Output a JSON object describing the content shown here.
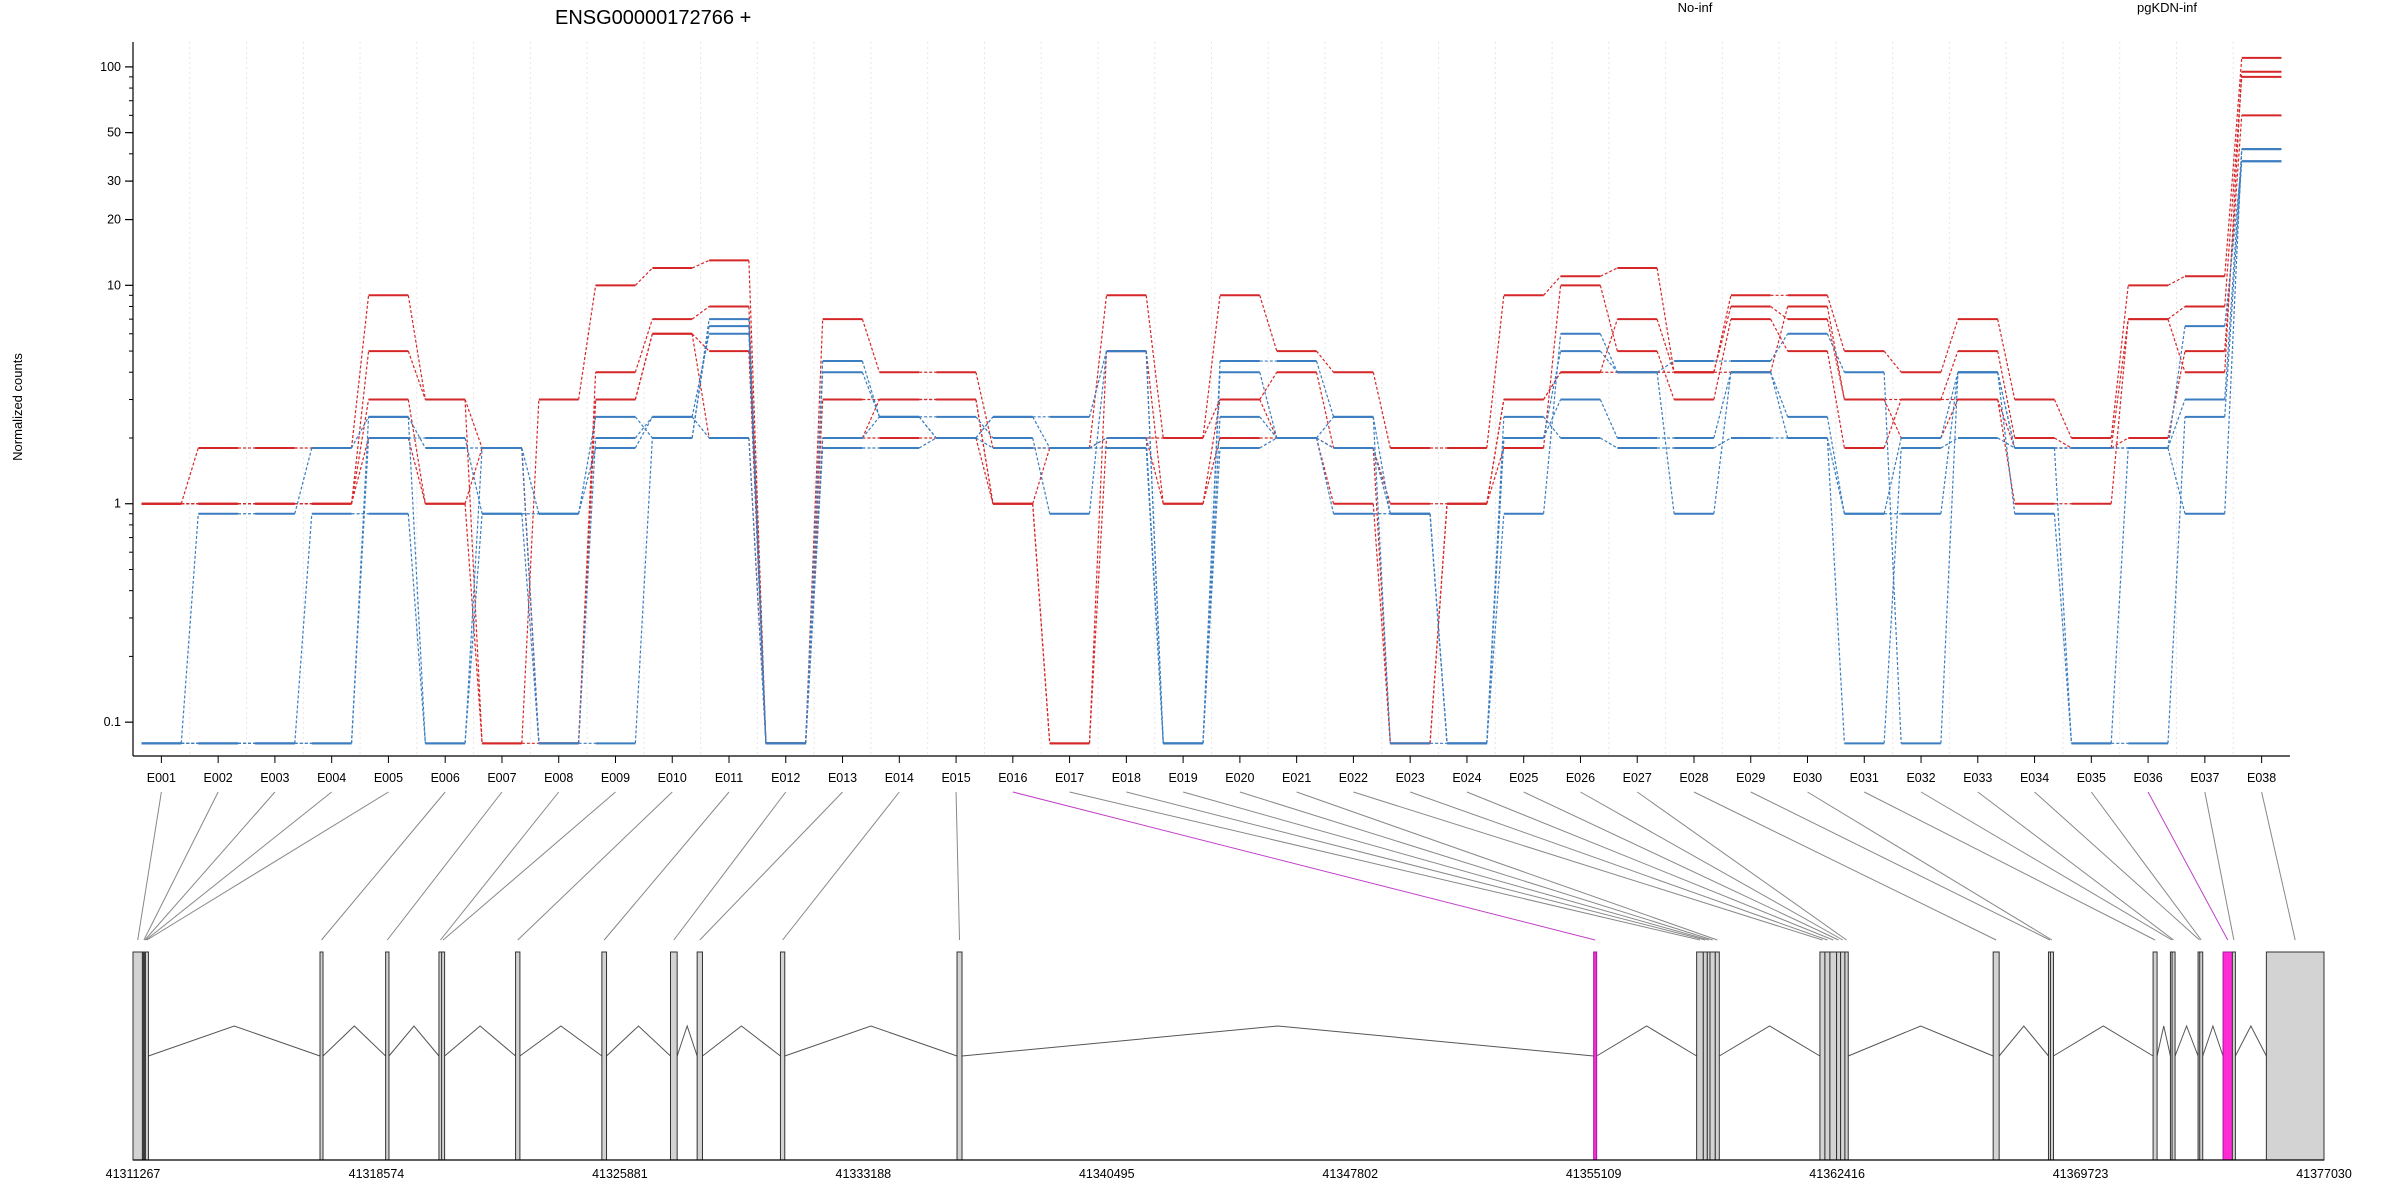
{
  "chart_data": [
    {
      "type": "line",
      "title": "ENSG00000172766 +",
      "xlabel": "",
      "ylabel": "Normalized counts",
      "y_scale": "log",
      "ylim": [
        0.07,
        130
      ],
      "yticks": [
        0.1,
        1,
        10,
        20,
        30,
        50,
        100
      ],
      "ytick_labels": [
        "0.1",
        "1",
        "10",
        "20",
        "30",
        "50",
        "100"
      ],
      "grid": "vertical dotted lines at exon boundaries",
      "legend_position": "top",
      "categories": [
        "E001",
        "E002",
        "E003",
        "E004",
        "E005",
        "E006",
        "E007",
        "E008",
        "E009",
        "E010",
        "E011",
        "E012",
        "E013",
        "E014",
        "E015",
        "E016",
        "E017",
        "E018",
        "E019",
        "E020",
        "E021",
        "E022",
        "E023",
        "E024",
        "E025",
        "E026",
        "E027",
        "E028",
        "E029",
        "E030",
        "E031",
        "E032",
        "E033",
        "E034",
        "E035",
        "E036",
        "E037",
        "E038"
      ],
      "groups": [
        {
          "name": "No-inf",
          "color": "#d62728"
        },
        {
          "name": "pgKDN-inf",
          "color": "#3a7dc0"
        }
      ],
      "series": [
        {
          "group": "No-inf",
          "values": [
            1,
            1.8,
            1.8,
            1.8,
            9,
            3,
            0.08,
            3,
            10,
            12,
            13,
            0.08,
            7,
            4,
            4,
            1.8,
            1.8,
            9,
            2,
            9,
            5,
            4,
            1.8,
            1.8,
            9,
            11,
            12,
            4,
            9,
            9,
            5,
            4,
            7,
            3,
            2,
            10,
            11,
            110
          ]
        },
        {
          "group": "No-inf",
          "values": [
            1,
            1,
            1,
            1,
            5,
            3,
            1.8,
            0.08,
            4,
            7,
            8,
            0.08,
            3,
            3,
            3,
            1,
            0.08,
            5,
            1,
            3,
            4,
            1.8,
            0.08,
            1,
            1.8,
            10,
            5,
            3,
            7,
            5,
            1.8,
            3,
            5,
            2,
            1.8,
            7,
            4,
            95
          ]
        },
        {
          "group": "No-inf",
          "values": [
            1,
            1,
            1,
            1,
            3,
            1,
            0.08,
            0.08,
            3,
            6,
            5,
            0.08,
            2,
            2,
            2,
            1,
            0.08,
            2,
            1,
            2,
            2,
            1,
            0.08,
            1,
            3,
            4,
            7,
            4,
            8,
            7,
            3,
            2,
            3,
            1,
            1,
            7,
            8,
            90
          ]
        },
        {
          "group": "No-inf",
          "values": [
            1,
            1,
            1,
            1,
            2,
            1,
            1.8,
            0.08,
            3,
            6,
            2,
            0.08,
            2,
            3,
            3,
            1,
            1.8,
            2,
            2,
            3,
            2,
            1.8,
            1,
            1,
            3,
            4,
            4,
            4,
            4,
            8,
            3,
            3,
            3,
            1.8,
            1.8,
            2,
            5,
            60
          ]
        },
        {
          "group": "pgKDN-inf",
          "values": [
            0.08,
            0.9,
            0.9,
            1.8,
            2.5,
            1.8,
            1.8,
            0.9,
            2.5,
            2,
            7,
            0.08,
            2,
            2.5,
            2.5,
            2,
            0.9,
            5,
            0.08,
            2.5,
            2,
            1.8,
            0.9,
            0.08,
            2,
            3,
            2,
            2,
            4,
            2,
            0.9,
            2,
            4,
            1.8,
            1.8,
            1.8,
            3,
            42
          ]
        },
        {
          "group": "pgKDN-inf",
          "values": [
            0.08,
            0.08,
            0.08,
            0.08,
            2,
            2,
            0.9,
            0.9,
            1.8,
            2.5,
            6,
            0.08,
            4,
            2.5,
            2,
            1.8,
            1.8,
            2,
            0.08,
            4,
            2,
            0.9,
            0.9,
            0.08,
            0.9,
            6,
            4,
            0.9,
            4,
            2.5,
            0.9,
            0.9,
            4,
            0.9,
            0.08,
            0.08,
            2.5,
            37
          ]
        },
        {
          "group": "pgKDN-inf",
          "values": [
            0.08,
            0.08,
            0.08,
            0.9,
            0.9,
            0.08,
            1.8,
            0.08,
            2,
            2.5,
            2,
            0.08,
            1.8,
            1.8,
            2,
            2.5,
            1.8,
            1.8,
            0.08,
            1.8,
            2,
            2.5,
            0.08,
            0.08,
            2.5,
            2,
            1.8,
            1.8,
            2,
            2,
            0.08,
            1.8,
            2,
            1.8,
            0.08,
            1.8,
            0.9,
            42
          ]
        },
        {
          "group": "pgKDN-inf",
          "values": [
            0.08,
            0.08,
            0.08,
            0.08,
            2.5,
            0.08,
            0.9,
            0.08,
            0.08,
            2,
            6.5,
            0.08,
            4.5,
            2.5,
            2,
            2.5,
            2.5,
            5,
            0.08,
            4.5,
            4.5,
            2.5,
            0.9,
            0.08,
            2,
            5,
            4,
            4.5,
            4.5,
            6,
            4,
            0.08,
            4,
            1.8,
            1.8,
            1.8,
            6.5,
            37
          ]
        }
      ]
    },
    {
      "type": "gene-model",
      "x_axis_ticks": [
        "41311267",
        "41318574",
        "41325881",
        "41333188",
        "41340495",
        "41347802",
        "41355109",
        "41362416",
        "41369723",
        "41377030"
      ],
      "xlim": [
        41311267,
        41377030
      ],
      "highlighted_exons": [
        "E016",
        "E036"
      ],
      "highlight_color": "#ff2ad4",
      "exon_fill": "#d3d3d3",
      "exons": [
        {
          "id": "E001",
          "start": 41311267,
          "end": 41311550
        },
        {
          "id": "E002",
          "start": 41311550,
          "end": 41311580
        },
        {
          "id": "E003",
          "start": 41311580,
          "end": 41311610
        },
        {
          "id": "E004",
          "start": 41311610,
          "end": 41311640
        },
        {
          "id": "E005",
          "start": 41311640,
          "end": 41311670
        },
        {
          "id": "E006",
          "start": 41316880,
          "end": 41316960
        },
        {
          "id": "E007",
          "start": 41318850,
          "end": 41318950
        },
        {
          "id": "E008",
          "start": 41320450,
          "end": 41320530
        },
        {
          "id": "E009",
          "start": 41320530,
          "end": 41320600
        },
        {
          "id": "E010",
          "start": 41322750,
          "end": 41322880
        },
        {
          "id": "E011",
          "start": 41325340,
          "end": 41325480
        },
        {
          "id": "E012",
          "start": 41327400,
          "end": 41327600
        },
        {
          "id": "E013",
          "start": 41328200,
          "end": 41328360
        },
        {
          "id": "E014",
          "start": 41330700,
          "end": 41330830
        },
        {
          "id": "E015",
          "start": 41336000,
          "end": 41336150
        },
        {
          "id": "E016",
          "start": 41355109,
          "end": 41355180
        },
        {
          "id": "E017",
          "start": 41358200,
          "end": 41358400
        },
        {
          "id": "E018",
          "start": 41358400,
          "end": 41358520
        },
        {
          "id": "E019",
          "start": 41358520,
          "end": 41358600
        },
        {
          "id": "E020",
          "start": 41358600,
          "end": 41358760
        },
        {
          "id": "E021",
          "start": 41358760,
          "end": 41358880
        },
        {
          "id": "E022",
          "start": 41361900,
          "end": 41362050
        },
        {
          "id": "E023",
          "start": 41362050,
          "end": 41362200
        },
        {
          "id": "E024",
          "start": 41362200,
          "end": 41362400
        },
        {
          "id": "E025",
          "start": 41362400,
          "end": 41362520
        },
        {
          "id": "E026",
          "start": 41362520,
          "end": 41362650
        },
        {
          "id": "E027",
          "start": 41362650,
          "end": 41362750
        },
        {
          "id": "E028",
          "start": 41367100,
          "end": 41367280
        },
        {
          "id": "E029",
          "start": 41368760,
          "end": 41368820
        },
        {
          "id": "E030",
          "start": 41368820,
          "end": 41368880
        },
        {
          "id": "E031",
          "start": 41371900,
          "end": 41372020
        },
        {
          "id": "E032",
          "start": 41372420,
          "end": 41372470
        },
        {
          "id": "E033",
          "start": 41372470,
          "end": 41372520
        },
        {
          "id": "E034",
          "start": 41373250,
          "end": 41373300
        },
        {
          "id": "E035",
          "start": 41373300,
          "end": 41373350
        },
        {
          "id": "E036",
          "start": 41374000,
          "end": 41374280
        },
        {
          "id": "E037",
          "start": 41374280,
          "end": 41374350
        },
        {
          "id": "E038",
          "start": 41375300,
          "end": 41377030
        }
      ]
    }
  ]
}
